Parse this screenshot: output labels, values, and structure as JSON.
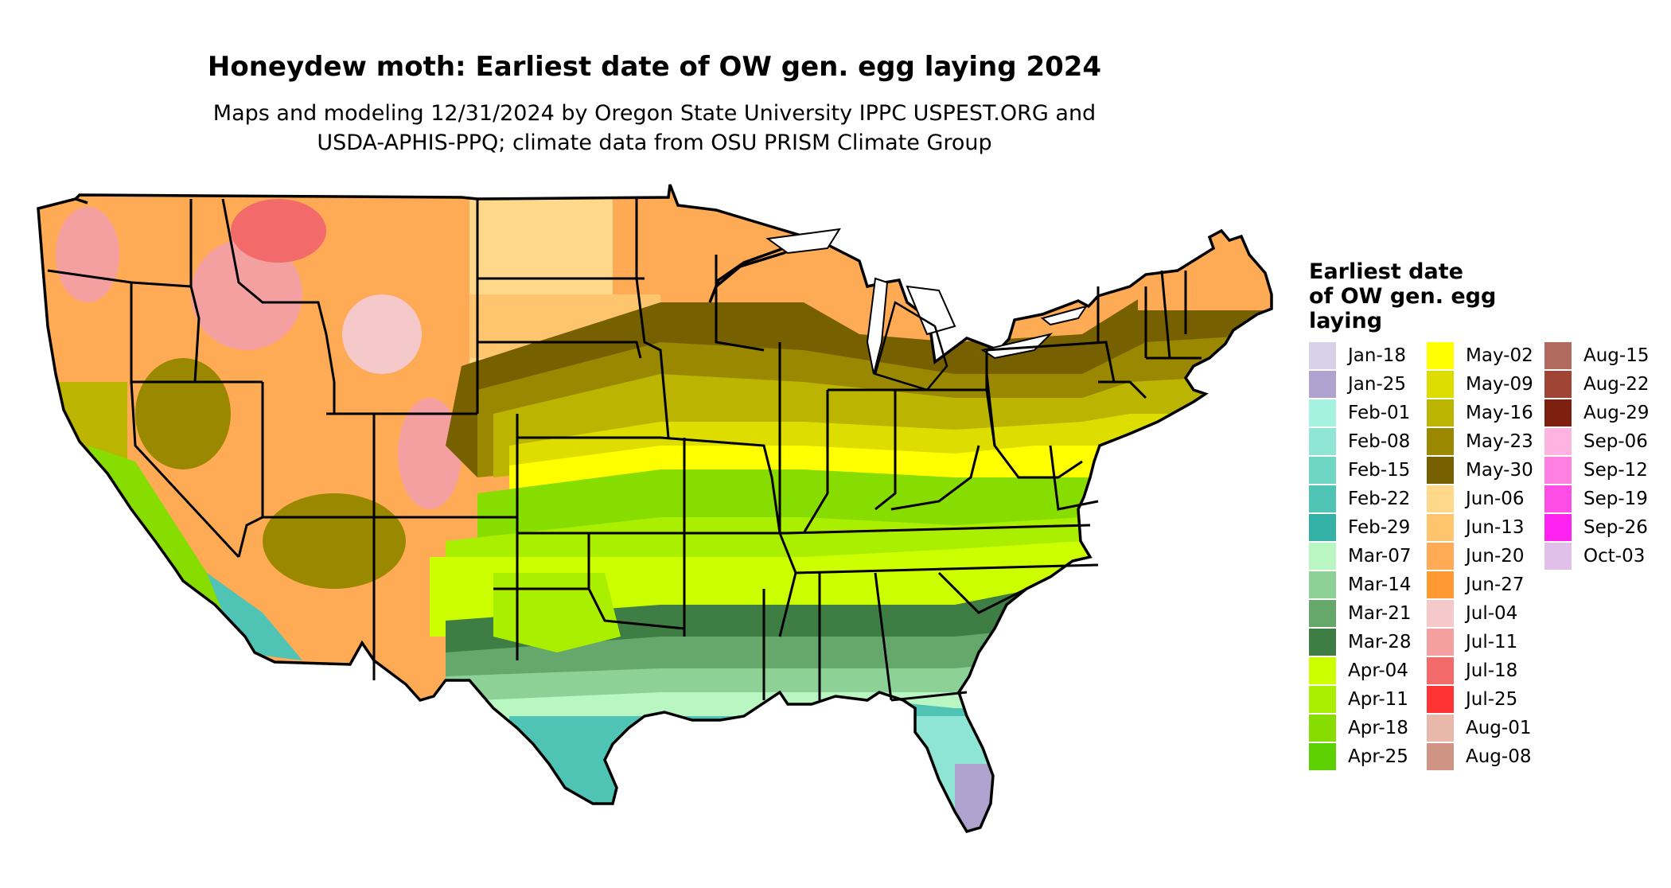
{
  "title": "Honeydew moth: Earliest date of OW gen. egg laying 2024",
  "subtitle_line1": "Maps and modeling 12/31/2024 by Oregon State University IPPC USPEST.ORG and",
  "subtitle_line2": "USDA-APHIS-PPQ; climate data from OSU PRISM Climate Group",
  "legend": {
    "title_line1": "Earliest date",
    "title_line2": "of OW gen. egg",
    "title_line3": "laying",
    "columns": [
      [
        {
          "label": "Jan-18",
          "color": "#d9d0ea"
        },
        {
          "label": "Jan-25",
          "color": "#b0a2cf"
        },
        {
          "label": "Feb-01",
          "color": "#a6f2e0"
        },
        {
          "label": "Feb-08",
          "color": "#8fe5d3"
        },
        {
          "label": "Feb-15",
          "color": "#6fd6c4"
        },
        {
          "label": "Feb-22",
          "color": "#4fc4b4"
        },
        {
          "label": "Feb-29",
          "color": "#33b1a6"
        },
        {
          "label": "Mar-07",
          "color": "#baf6c1"
        },
        {
          "label": "Mar-14",
          "color": "#8ed197"
        },
        {
          "label": "Mar-21",
          "color": "#66a86c"
        },
        {
          "label": "Mar-28",
          "color": "#3e7d43"
        },
        {
          "label": "Apr-04",
          "color": "#ccff00"
        },
        {
          "label": "Apr-11",
          "color": "#aaee00"
        },
        {
          "label": "Apr-18",
          "color": "#88dd00"
        },
        {
          "label": "Apr-25",
          "color": "#5cd000"
        }
      ],
      [
        {
          "label": "May-02",
          "color": "#ffff00"
        },
        {
          "label": "May-09",
          "color": "#dddd00"
        },
        {
          "label": "May-16",
          "color": "#bbb400"
        },
        {
          "label": "May-23",
          "color": "#998800"
        },
        {
          "label": "May-30",
          "color": "#776000"
        },
        {
          "label": "Jun-06",
          "color": "#ffd88a"
        },
        {
          "label": "Jun-13",
          "color": "#ffc46e"
        },
        {
          "label": "Jun-20",
          "color": "#ffaa55"
        },
        {
          "label": "Jun-27",
          "color": "#ff9933"
        },
        {
          "label": "Jul-04",
          "color": "#f5c9c9"
        },
        {
          "label": "Jul-11",
          "color": "#f5a0a0"
        },
        {
          "label": "Jul-18",
          "color": "#f26a6a"
        },
        {
          "label": "Jul-25",
          "color": "#ff3333"
        },
        {
          "label": "Aug-01",
          "color": "#e8b8aa"
        },
        {
          "label": "Aug-08",
          "color": "#cf9484"
        }
      ],
      [
        {
          "label": "Aug-15",
          "color": "#b06a5e"
        },
        {
          "label": "Aug-22",
          "color": "#a04535"
        },
        {
          "label": "Aug-29",
          "color": "#7e2010"
        },
        {
          "label": "Sep-06",
          "color": "#ffb3e0"
        },
        {
          "label": "Sep-12",
          "color": "#ff80e0"
        },
        {
          "label": "Sep-19",
          "color": "#ff4ee6"
        },
        {
          "label": "Sep-26",
          "color": "#ff22f0"
        },
        {
          "label": "Oct-03",
          "color": "#e0c0e8"
        }
      ]
    ]
  },
  "map_colors": {
    "ocean": "#ffffff",
    "border": "#000000"
  }
}
